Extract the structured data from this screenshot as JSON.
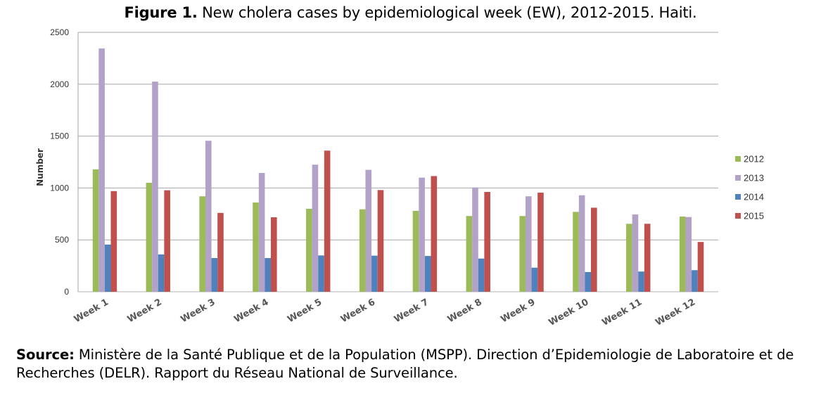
{
  "figure": {
    "label": "Figure 1.",
    "caption": " New cholera cases by epidemiological week (EW), 2012-2015. Haiti."
  },
  "source": {
    "label": "Source:",
    "text": " Ministère de la Santé Publique et de la Population (MSPP). Direction d’Epidemiologie de Laboratoire et de Recherches (DELR). Rapport du Réseau National de Surveillance."
  },
  "chart_data": {
    "type": "bar",
    "title": "Figure 1. New cholera cases by epidemiological week (EW), 2012-2015. Haiti.",
    "xlabel": "",
    "ylabel": "Number",
    "ylim": [
      0,
      2500
    ],
    "yticks": [
      0,
      500,
      1000,
      1500,
      2000,
      2500
    ],
    "grid": true,
    "legend_position": "right",
    "categories": [
      "Week 1",
      "Week 2",
      "Week 3",
      "Week 4",
      "Week 5",
      "Week 6",
      "Week 7",
      "Week 8",
      "Week 9",
      "Week 10",
      "Week 11",
      "Week 12"
    ],
    "series": [
      {
        "name": "2012",
        "color": "#9BBB59",
        "values": [
          1180,
          1050,
          920,
          860,
          800,
          795,
          780,
          730,
          730,
          770,
          655,
          725
        ]
      },
      {
        "name": "2013",
        "color": "#B3A2C7",
        "values": [
          2345,
          2025,
          1455,
          1145,
          1225,
          1175,
          1100,
          1005,
          920,
          930,
          745,
          720
        ]
      },
      {
        "name": "2014",
        "color": "#4F81BD",
        "values": [
          455,
          360,
          325,
          325,
          350,
          348,
          345,
          320,
          232,
          190,
          195,
          208
        ]
      },
      {
        "name": "2015",
        "color": "#C0504D",
        "values": [
          970,
          978,
          760,
          718,
          1360,
          980,
          1115,
          962,
          955,
          810,
          655,
          480
        ]
      }
    ]
  }
}
